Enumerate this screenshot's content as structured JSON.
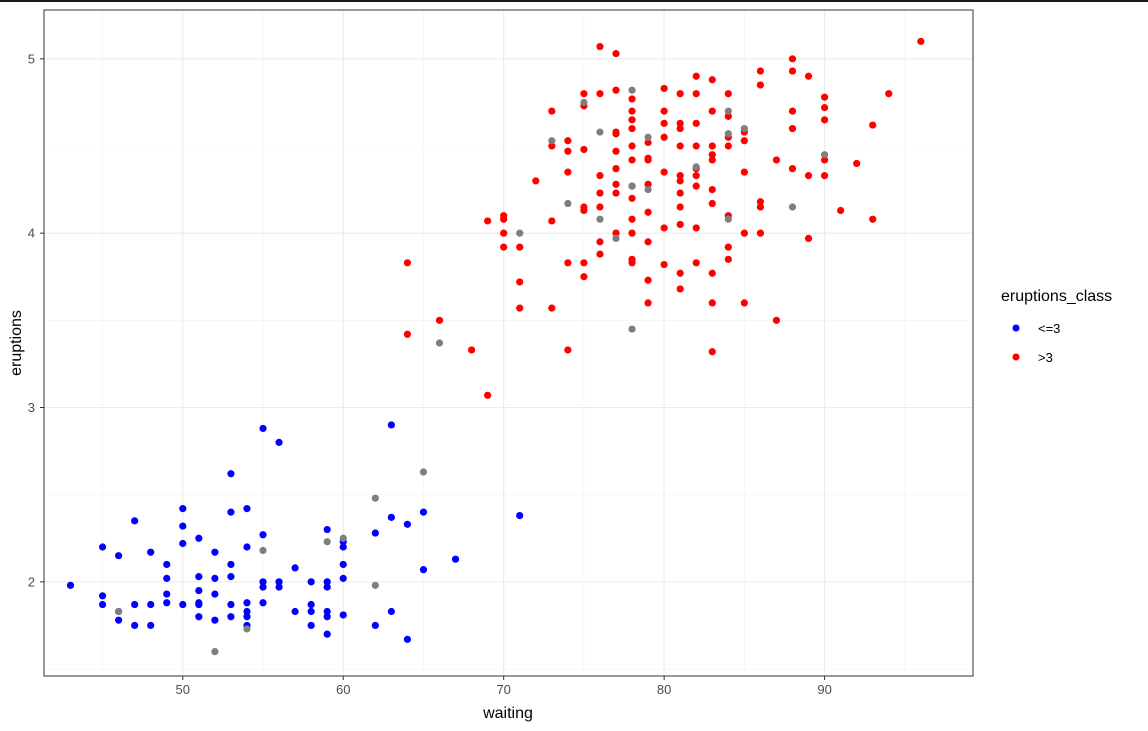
{
  "chart_data": {
    "type": "scatter",
    "title": "",
    "xlabel": "waiting",
    "ylabel": "eruptions",
    "xlim": [
      41.35,
      99.25
    ],
    "ylim": [
      1.46,
      5.28
    ],
    "x_ticks": [
      50,
      60,
      70,
      80,
      90
    ],
    "y_ticks": [
      2,
      3,
      4,
      5
    ],
    "grid": true,
    "legend_title": "eruptions_class",
    "legend_position": "right",
    "series": [
      {
        "name": "<=3",
        "color": "#0000ff",
        "points": [
          [
            43,
            1.98
          ],
          [
            45,
            2.2
          ],
          [
            45,
            1.92
          ],
          [
            45,
            1.87
          ],
          [
            46,
            2.15
          ],
          [
            46,
            1.83
          ],
          [
            46,
            1.78
          ],
          [
            47,
            2.35
          ],
          [
            47,
            1.87
          ],
          [
            47,
            1.75
          ],
          [
            48,
            2.17
          ],
          [
            48,
            1.87
          ],
          [
            48,
            1.75
          ],
          [
            49,
            2.1
          ],
          [
            49,
            2.02
          ],
          [
            49,
            1.93
          ],
          [
            49,
            1.88
          ],
          [
            50,
            2.42
          ],
          [
            50,
            2.32
          ],
          [
            50,
            2.22
          ],
          [
            50,
            1.87
          ],
          [
            51,
            2.25
          ],
          [
            51,
            2.03
          ],
          [
            51,
            1.95
          ],
          [
            51,
            1.88
          ],
          [
            51,
            1.87
          ],
          [
            51,
            1.8
          ],
          [
            52,
            2.17
          ],
          [
            52,
            2.02
          ],
          [
            52,
            1.93
          ],
          [
            52,
            1.78
          ],
          [
            53,
            2.62
          ],
          [
            53,
            2.4
          ],
          [
            53,
            2.1
          ],
          [
            53,
            2.03
          ],
          [
            53,
            1.87
          ],
          [
            53,
            1.8
          ],
          [
            54,
            2.42
          ],
          [
            54,
            2.2
          ],
          [
            54,
            1.88
          ],
          [
            54,
            1.83
          ],
          [
            54,
            1.8
          ],
          [
            54,
            1.75
          ],
          [
            55,
            2.88
          ],
          [
            55,
            2.27
          ],
          [
            55,
            2.0
          ],
          [
            55,
            1.97
          ],
          [
            55,
            1.88
          ],
          [
            56,
            2.8
          ],
          [
            56,
            2.0
          ],
          [
            56,
            1.97
          ],
          [
            57,
            2.08
          ],
          [
            57,
            1.83
          ],
          [
            58,
            2.0
          ],
          [
            58,
            1.87
          ],
          [
            58,
            1.83
          ],
          [
            58,
            1.75
          ],
          [
            59,
            2.3
          ],
          [
            59,
            2.0
          ],
          [
            59,
            1.97
          ],
          [
            59,
            1.83
          ],
          [
            59,
            1.8
          ],
          [
            59,
            1.7
          ],
          [
            60,
            2.23
          ],
          [
            60,
            2.2
          ],
          [
            60,
            2.1
          ],
          [
            60,
            2.02
          ],
          [
            60,
            1.81
          ],
          [
            62,
            2.28
          ],
          [
            62,
            1.75
          ],
          [
            63,
            2.9
          ],
          [
            63,
            2.37
          ],
          [
            63,
            1.83
          ],
          [
            64,
            2.33
          ],
          [
            64,
            1.67
          ],
          [
            65,
            2.4
          ],
          [
            65,
            2.07
          ],
          [
            67,
            2.13
          ],
          [
            71,
            2.38
          ]
        ]
      },
      {
        "name": ">3",
        "color": "#ff0000",
        "points": [
          [
            64,
            3.83
          ],
          [
            64,
            3.42
          ],
          [
            66,
            3.5
          ],
          [
            68,
            3.33
          ],
          [
            69,
            4.07
          ],
          [
            69,
            3.07
          ],
          [
            70,
            4.1
          ],
          [
            70,
            4.08
          ],
          [
            70,
            4.0
          ],
          [
            70,
            3.92
          ],
          [
            71,
            3.92
          ],
          [
            71,
            3.72
          ],
          [
            71,
            3.57
          ],
          [
            72,
            4.3
          ],
          [
            73,
            4.7
          ],
          [
            73,
            4.5
          ],
          [
            73,
            4.07
          ],
          [
            73,
            3.57
          ],
          [
            74,
            4.53
          ],
          [
            74,
            4.47
          ],
          [
            74,
            4.35
          ],
          [
            74,
            3.83
          ],
          [
            74,
            3.33
          ],
          [
            75,
            4.8
          ],
          [
            75,
            4.73
          ],
          [
            75,
            4.48
          ],
          [
            75,
            4.15
          ],
          [
            75,
            4.13
          ],
          [
            75,
            3.83
          ],
          [
            75,
            3.75
          ],
          [
            76,
            5.07
          ],
          [
            76,
            4.8
          ],
          [
            76,
            4.33
          ],
          [
            76,
            4.23
          ],
          [
            76,
            4.15
          ],
          [
            76,
            3.95
          ],
          [
            76,
            3.88
          ],
          [
            77,
            5.03
          ],
          [
            77,
            4.82
          ],
          [
            77,
            4.58
          ],
          [
            77,
            4.57
          ],
          [
            77,
            4.47
          ],
          [
            77,
            4.37
          ],
          [
            77,
            4.28
          ],
          [
            77,
            4.23
          ],
          [
            77,
            4.0
          ],
          [
            78,
            4.77
          ],
          [
            78,
            4.7
          ],
          [
            78,
            4.65
          ],
          [
            78,
            4.6
          ],
          [
            78,
            4.5
          ],
          [
            78,
            4.42
          ],
          [
            78,
            4.27
          ],
          [
            78,
            4.2
          ],
          [
            78,
            4.08
          ],
          [
            78,
            4.0
          ],
          [
            78,
            3.85
          ],
          [
            78,
            3.83
          ],
          [
            79,
            4.52
          ],
          [
            79,
            4.43
          ],
          [
            79,
            4.42
          ],
          [
            79,
            4.28
          ],
          [
            79,
            4.12
          ],
          [
            79,
            3.95
          ],
          [
            79,
            3.73
          ],
          [
            79,
            3.6
          ],
          [
            80,
            4.83
          ],
          [
            80,
            4.7
          ],
          [
            80,
            4.63
          ],
          [
            80,
            4.55
          ],
          [
            80,
            4.35
          ],
          [
            80,
            4.03
          ],
          [
            80,
            3.82
          ],
          [
            81,
            4.8
          ],
          [
            81,
            4.63
          ],
          [
            81,
            4.6
          ],
          [
            81,
            4.5
          ],
          [
            81,
            4.33
          ],
          [
            81,
            4.3
          ],
          [
            81,
            4.23
          ],
          [
            81,
            4.15
          ],
          [
            81,
            4.05
          ],
          [
            81,
            3.77
          ],
          [
            81,
            3.68
          ],
          [
            82,
            4.9
          ],
          [
            82,
            4.8
          ],
          [
            82,
            4.63
          ],
          [
            82,
            4.5
          ],
          [
            82,
            4.37
          ],
          [
            82,
            4.33
          ],
          [
            82,
            4.27
          ],
          [
            82,
            4.03
          ],
          [
            82,
            3.83
          ],
          [
            83,
            4.88
          ],
          [
            83,
            4.7
          ],
          [
            83,
            4.5
          ],
          [
            83,
            4.45
          ],
          [
            83,
            4.42
          ],
          [
            83,
            4.25
          ],
          [
            83,
            4.17
          ],
          [
            83,
            3.77
          ],
          [
            83,
            3.6
          ],
          [
            83,
            3.32
          ],
          [
            84,
            4.8
          ],
          [
            84,
            4.67
          ],
          [
            84,
            4.55
          ],
          [
            84,
            4.5
          ],
          [
            84,
            4.1
          ],
          [
            84,
            3.92
          ],
          [
            84,
            3.85
          ],
          [
            85,
            4.58
          ],
          [
            85,
            4.53
          ],
          [
            85,
            4.35
          ],
          [
            85,
            4.0
          ],
          [
            85,
            3.6
          ],
          [
            86,
            4.93
          ],
          [
            86,
            4.85
          ],
          [
            86,
            4.18
          ],
          [
            86,
            4.15
          ],
          [
            86,
            4.0
          ],
          [
            87,
            4.42
          ],
          [
            87,
            3.5
          ],
          [
            88,
            5.0
          ],
          [
            88,
            4.93
          ],
          [
            88,
            4.7
          ],
          [
            88,
            4.6
          ],
          [
            88,
            4.37
          ],
          [
            89,
            4.9
          ],
          [
            89,
            4.33
          ],
          [
            89,
            3.97
          ],
          [
            90,
            4.78
          ],
          [
            90,
            4.72
          ],
          [
            90,
            4.65
          ],
          [
            90,
            4.42
          ],
          [
            90,
            4.33
          ],
          [
            92,
            4.4
          ],
          [
            91,
            4.13
          ],
          [
            93,
            4.62
          ],
          [
            93,
            4.08
          ],
          [
            94,
            4.8
          ],
          [
            96,
            5.1
          ]
        ]
      },
      {
        "name": "",
        "color": "#7f7f7f",
        "points": [
          [
            46,
            1.83
          ],
          [
            52,
            1.6
          ],
          [
            54,
            1.73
          ],
          [
            55,
            2.18
          ],
          [
            59,
            2.23
          ],
          [
            60,
            2.25
          ],
          [
            62,
            2.48
          ],
          [
            62,
            1.98
          ],
          [
            65,
            2.63
          ],
          [
            66,
            3.37
          ],
          [
            71,
            4.0
          ],
          [
            73,
            4.53
          ],
          [
            74,
            4.17
          ],
          [
            75,
            4.75
          ],
          [
            76,
            4.58
          ],
          [
            76,
            4.08
          ],
          [
            77,
            3.97
          ],
          [
            78,
            4.82
          ],
          [
            78,
            4.27
          ],
          [
            78,
            3.45
          ],
          [
            79,
            4.55
          ],
          [
            79,
            4.25
          ],
          [
            82,
            4.38
          ],
          [
            84,
            4.7
          ],
          [
            84,
            4.57
          ],
          [
            84,
            4.08
          ],
          [
            85,
            4.6
          ],
          [
            88,
            4.15
          ],
          [
            90,
            4.45
          ]
        ]
      }
    ]
  }
}
